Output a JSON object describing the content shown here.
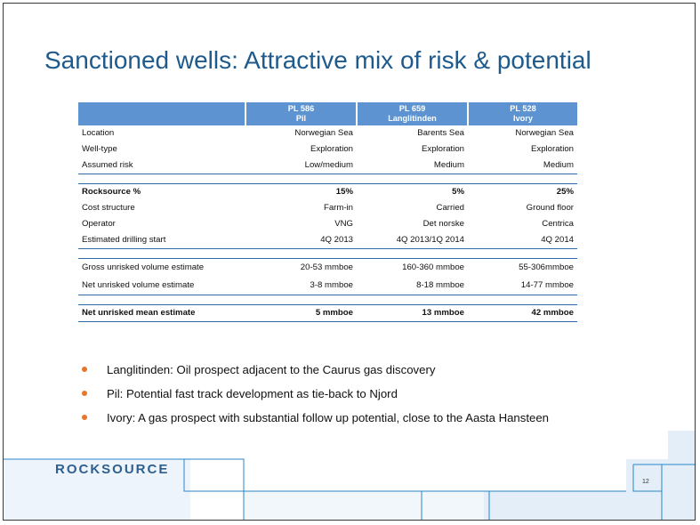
{
  "title": "Sanctioned wells: Attractive mix of risk & potential",
  "table": {
    "columns": [
      {
        "id": "PL 586",
        "name": "Pil"
      },
      {
        "id": "PL 659",
        "name": "Langlitinden"
      },
      {
        "id": "PL 528",
        "name": "Ivory"
      }
    ],
    "rows": [
      {
        "label": "Location",
        "values": [
          "Norwegian Sea",
          "Barents Sea",
          "Norwegian Sea"
        ]
      },
      {
        "label": "Well-type",
        "values": [
          "Exploration",
          "Exploration",
          "Exploration"
        ]
      },
      {
        "label": "Assumed risk",
        "values": [
          "Low/medium",
          "Medium",
          "Medium"
        ]
      },
      {
        "label": "Rocksource %",
        "values": [
          "15%",
          "5%",
          "25%"
        ]
      },
      {
        "label": "Cost structure",
        "values": [
          "Farm-in",
          "Carried",
          "Ground floor"
        ]
      },
      {
        "label": "Operator",
        "values": [
          "VNG",
          "Det norske",
          "Centrica"
        ]
      },
      {
        "label": "Estimated drilling start",
        "values": [
          "4Q 2013",
          "4Q 2013/1Q 2014",
          "4Q 2014"
        ]
      },
      {
        "label": "Gross unrisked volume estimate",
        "values": [
          "20-53 mmboe",
          "160-360 mmboe",
          "55-306mmboe"
        ]
      },
      {
        "label": "Net unrisked volume estimate",
        "values": [
          "3-8 mmboe",
          "8-18 mmboe",
          "14-77 mmboe"
        ]
      },
      {
        "label": "Net unrisked mean estimate",
        "values": [
          "5 mmboe",
          "13 mmboe",
          "42 mmboe"
        ]
      }
    ]
  },
  "bullets": [
    "Langlitinden: Oil prospect adjacent to the Caurus gas discovery",
    "Pil: Potential fast track development as tie-back to Njord",
    "Ivory: A gas prospect with substantial follow up potential, close to the Aasta Hansteen"
  ],
  "logo": "ROCKSOURCE",
  "page_number": "12",
  "colors": {
    "title": "#1f5a8c",
    "header_fill": "#5c93d0",
    "rule": "#2e6aa8",
    "bullet": "#e8752a",
    "deco_fill": "#e3eef8",
    "deco_line": "#2a86c8"
  }
}
